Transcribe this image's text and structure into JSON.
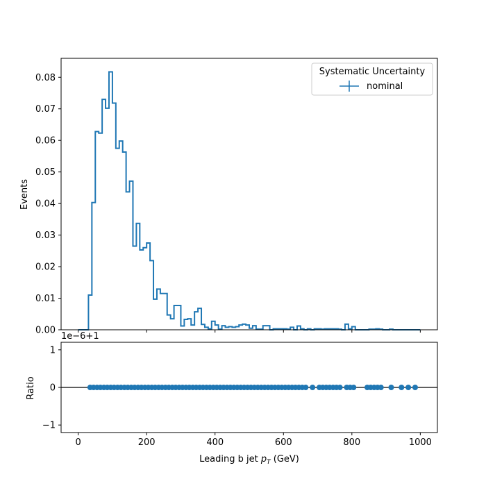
{
  "chart_data": [
    {
      "type": "step",
      "panel": "main",
      "ylabel": "Events",
      "xlim": [
        -50,
        1050
      ],
      "ylim": [
        0,
        0.086
      ],
      "yticks": [
        0,
        0.01,
        0.02,
        0.03,
        0.04,
        0.05,
        0.06,
        0.07,
        0.08
      ],
      "ytick_labels": [
        "0.00",
        "0.01",
        "0.02",
        "0.03",
        "0.04",
        "0.05",
        "0.06",
        "0.07",
        "0.08"
      ],
      "legend": {
        "title": "Systematic Uncertainty",
        "entries": [
          "nominal"
        ],
        "placement": "top-right"
      },
      "color": "#1f77b4",
      "bin_width": 10,
      "series": [
        {
          "name": "nominal",
          "bin_edges_start": 0,
          "values": [
            0.0,
            0.0,
            0.0,
            0.011,
            0.0403,
            0.0628,
            0.0623,
            0.073,
            0.0702,
            0.0817,
            0.0718,
            0.0575,
            0.0598,
            0.0563,
            0.0437,
            0.0471,
            0.0265,
            0.0337,
            0.0253,
            0.026,
            0.0275,
            0.0219,
            0.0097,
            0.0129,
            0.0115,
            0.0115,
            0.0047,
            0.0035,
            0.0077,
            0.0077,
            0.0012,
            0.0033,
            0.0035,
            0.0015,
            0.0057,
            0.0068,
            0.0017,
            0.0008,
            0.0003,
            0.0027,
            0.0015,
            0.0002,
            0.0013,
            0.0008,
            0.001,
            0.0008,
            0.001,
            0.0015,
            0.0018,
            0.0015,
            0.0005,
            0.0013,
            0.0002,
            0.0002,
            0.0013,
            0.0013,
            0.0,
            0.0003,
            0.0003,
            0.0003,
            0.0003,
            0.0002,
            0.0008,
            0.0,
            0.0012,
            0.0003,
            0.0,
            0.0003,
            0.0,
            0.0003,
            0.0003,
            0.0002,
            0.0003,
            0.0003,
            0.0003,
            0.0003,
            0.0002,
            0.0,
            0.0018,
            0.0003,
            0.001,
            0.0,
            0.0,
            0.0,
            0.0,
            0.0002,
            0.0002,
            0.0003,
            0.0002,
            0.0,
            0.0,
            0.0002,
            0.0,
            0.0,
            0.0,
            0.0,
            0.0,
            0.0,
            0.0,
            0.0
          ]
        }
      ]
    },
    {
      "type": "scatter",
      "panel": "ratio",
      "ylabel": "Ratio",
      "xlabel": "Leading b jet  p_T (GeV)",
      "xlabel_main": "Leading b jet  ",
      "xlabel_p": "p",
      "xlabel_sub": "T",
      "xlabel_unit": " (GeV)",
      "offset_text": "1e−6+1",
      "xlim": [
        -50,
        1050
      ],
      "ylim": [
        -1.2,
        1.2
      ],
      "yticks": [
        -1,
        0,
        1
      ],
      "ytick_labels": [
        "−1",
        "0",
        "1"
      ],
      "xticks": [
        0,
        200,
        400,
        600,
        800,
        1000
      ],
      "xtick_labels": [
        "0",
        "200",
        "400",
        "600",
        "800",
        "1000"
      ],
      "reference_line": 0,
      "color": "#1f77b4",
      "series": [
        {
          "name": "",
          "x": [
            35,
            45,
            55,
            65,
            75,
            85,
            95,
            105,
            115,
            125,
            135,
            145,
            155,
            165,
            175,
            185,
            195,
            205,
            215,
            225,
            235,
            245,
            255,
            265,
            275,
            285,
            295,
            305,
            315,
            325,
            335,
            345,
            355,
            365,
            375,
            385,
            395,
            405,
            415,
            425,
            435,
            445,
            455,
            465,
            475,
            485,
            495,
            505,
            515,
            525,
            535,
            545,
            555,
            565,
            575,
            585,
            595,
            605,
            615,
            625,
            635,
            645,
            655,
            665,
            685,
            705,
            715,
            725,
            735,
            745,
            755,
            765,
            785,
            795,
            805,
            845,
            855,
            865,
            875,
            885,
            915,
            945,
            965,
            985
          ],
          "y": [
            0,
            0,
            0,
            0,
            0,
            0,
            0,
            0,
            0,
            0,
            0,
            0,
            0,
            0,
            0,
            0,
            0,
            0,
            0,
            0,
            0,
            0,
            0,
            0,
            0,
            0,
            0,
            0,
            0,
            0,
            0,
            0,
            0,
            0,
            0,
            0,
            0,
            0,
            0,
            0,
            0,
            0,
            0,
            0,
            0,
            0,
            0,
            0,
            0,
            0,
            0,
            0,
            0,
            0,
            0,
            0,
            0,
            0,
            0,
            0,
            0,
            0,
            0,
            0,
            0,
            0,
            0,
            0,
            0,
            0,
            0,
            0,
            0,
            0,
            0,
            0,
            0,
            0,
            0,
            0,
            0,
            0,
            0,
            0
          ]
        }
      ]
    }
  ]
}
